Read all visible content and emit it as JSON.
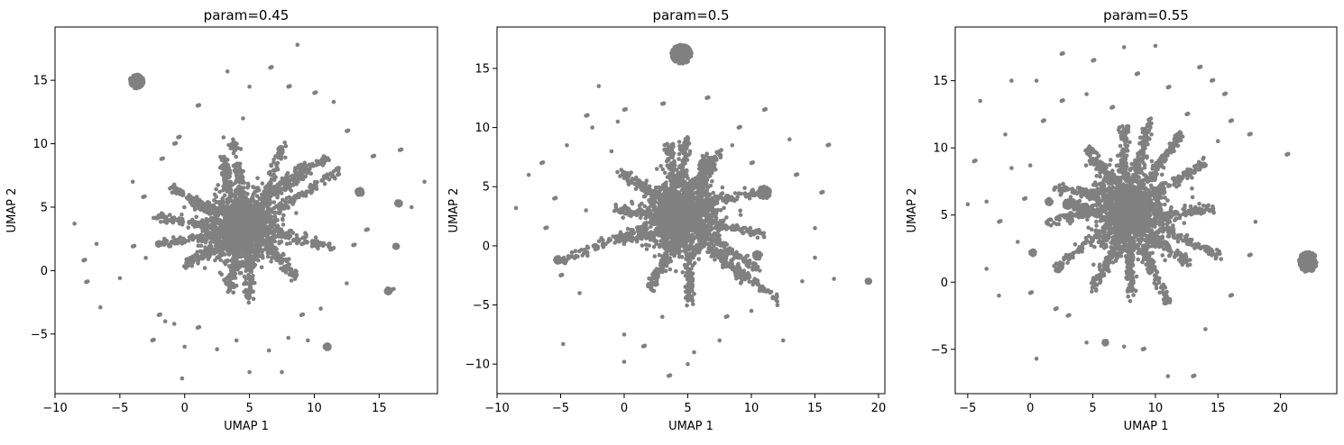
{
  "colors": {
    "points": "#808080",
    "axes": "#000000",
    "background": "#ffffff"
  },
  "chart_data": [
    {
      "type": "scatter",
      "title": "param=0.45",
      "xlabel": "UMAP 1",
      "ylabel": "UMAP 2",
      "xlim": [
        -10,
        19.5
      ],
      "ylim": [
        -9.7,
        19.2
      ],
      "xticks": [
        -10,
        -5,
        0,
        5,
        10,
        15
      ],
      "yticks": [
        -5,
        0,
        5,
        10,
        15
      ],
      "xtick_labels": [
        "−10",
        "−5",
        "0",
        "5",
        "10",
        "15"
      ],
      "ytick_labels": [
        "−5",
        "0",
        "5",
        "10",
        "15"
      ],
      "grid": false,
      "color": "#808080",
      "core": {
        "center": [
          4.5,
          3.5
        ],
        "spread": [
          1.3,
          1.3
        ]
      },
      "arms": [
        [
          [
            6.0,
            5.0
          ],
          [
            7.6,
            10.0
          ]
        ],
        [
          [
            6.5,
            6.0
          ],
          [
            9.5,
            8.5
          ]
        ],
        [
          [
            3.5,
            6.0
          ],
          [
            3.0,
            9.0
          ]
        ],
        [
          [
            7.0,
            6.0
          ],
          [
            11.0,
            9.0
          ]
        ],
        [
          [
            7.5,
            5.0
          ],
          [
            12.0,
            8.0
          ]
        ],
        [
          [
            2.5,
            4.5
          ],
          [
            -1.0,
            6.5
          ]
        ],
        [
          [
            3.0,
            3.0
          ],
          [
            -2.0,
            2.0
          ]
        ],
        [
          [
            3.0,
            2.0
          ],
          [
            0.0,
            0.5
          ]
        ],
        [
          [
            4.0,
            1.5
          ],
          [
            3.5,
            -1.5
          ]
        ],
        [
          [
            5.0,
            1.5
          ],
          [
            5.0,
            -2.5
          ]
        ],
        [
          [
            6.5,
            2.0
          ],
          [
            8.5,
            -0.5
          ]
        ],
        [
          [
            7.0,
            3.0
          ],
          [
            11.5,
            1.8
          ]
        ],
        [
          [
            4.5,
            5.5
          ],
          [
            3.8,
            10.2
          ]
        ],
        [
          [
            2.0,
            3.5
          ],
          [
            -2.0,
            4.2
          ]
        ]
      ],
      "clusters": [
        {
          "center": [
            -3.7,
            14.9
          ],
          "radius": 0.55
        },
        {
          "center": [
            13.5,
            6.2
          ],
          "radius": 0.25
        },
        {
          "center": [
            16.5,
            5.3
          ],
          "radius": 0.2
        },
        {
          "center": [
            16.3,
            1.9
          ],
          "radius": 0.15
        },
        {
          "center": [
            15.7,
            -1.6
          ],
          "radius": 0.2
        },
        {
          "center": [
            11.0,
            -6.0
          ],
          "radius": 0.2
        },
        {
          "center": [
            -2.0,
            2.1
          ],
          "radius": 0.15
        }
      ],
      "outliers": [
        [
          -8.5,
          3.7
        ],
        [
          -7.8,
          0.8
        ],
        [
          -7.6,
          -0.9
        ],
        [
          -6.5,
          -2.9
        ],
        [
          -6.8,
          2.1
        ],
        [
          -5.0,
          -0.6
        ],
        [
          -4.0,
          1.9
        ],
        [
          -3.0,
          1.0
        ],
        [
          -2.0,
          -3.5
        ],
        [
          -2.5,
          -5.5
        ],
        [
          -0.2,
          -8.5
        ],
        [
          -0.8,
          -4.2
        ],
        [
          0.0,
          -6.0
        ],
        [
          1.0,
          -4.5
        ],
        [
          -1.5,
          -4.0
        ],
        [
          2.5,
          -6.2
        ],
        [
          4.0,
          -5.5
        ],
        [
          5.0,
          -8.0
        ],
        [
          6.5,
          -6.3
        ],
        [
          7.5,
          -8.0
        ],
        [
          8.0,
          -5.3
        ],
        [
          9.0,
          -3.5
        ],
        [
          9.5,
          -5.5
        ],
        [
          10.5,
          -3.0
        ],
        [
          12.5,
          -1.0
        ],
        [
          13.0,
          2.0
        ],
        [
          14.0,
          3.2
        ],
        [
          16.0,
          -1.5
        ],
        [
          17.5,
          5.0
        ],
        [
          18.5,
          7.0
        ],
        [
          16.6,
          9.5
        ],
        [
          14.5,
          9.0
        ],
        [
          12.5,
          11.0
        ],
        [
          11.5,
          13.3
        ],
        [
          10.0,
          14.0
        ],
        [
          8.0,
          14.5
        ],
        [
          6.6,
          16.0
        ],
        [
          8.7,
          17.8
        ],
        [
          5.0,
          14.5
        ],
        [
          3.3,
          15.7
        ],
        [
          1.0,
          13.0
        ],
        [
          4.5,
          12.0
        ],
        [
          -0.5,
          10.5
        ],
        [
          -1.8,
          8.8
        ],
        [
          -4.0,
          7.0
        ],
        [
          -3.2,
          5.8
        ],
        [
          -0.8,
          10.0
        ],
        [
          3.0,
          10.5
        ]
      ]
    },
    {
      "type": "scatter",
      "title": "param=0.5",
      "xlabel": "UMAP 1",
      "ylabel": "UMAP 2",
      "xlim": [
        -10,
        20.5
      ],
      "ylim": [
        -12.5,
        18.5
      ],
      "xticks": [
        -10,
        -5,
        0,
        5,
        10,
        15,
        20
      ],
      "yticks": [
        -10,
        -5,
        0,
        5,
        10,
        15
      ],
      "xtick_labels": [
        "−10",
        "−5",
        "0",
        "5",
        "10",
        "15",
        "20"
      ],
      "ytick_labels": [
        "−10",
        "−5",
        "0",
        "5",
        "10",
        "15"
      ],
      "grid": false,
      "color": "#808080",
      "core": {
        "center": [
          4.5,
          2.5
        ],
        "spread": [
          1.3,
          1.4
        ]
      },
      "arms": [
        [
          [
            5.8,
            4.5
          ],
          [
            7.5,
            8.0
          ]
        ],
        [
          [
            6.0,
            3.5
          ],
          [
            10.5,
            4.5
          ]
        ],
        [
          [
            6.5,
            2.0
          ],
          [
            11.0,
            1.0
          ]
        ],
        [
          [
            6.0,
            0.5
          ],
          [
            9.5,
            -3.0
          ]
        ],
        [
          [
            5.0,
            0.0
          ],
          [
            5.2,
            -5.0
          ]
        ],
        [
          [
            4.0,
            0.0
          ],
          [
            2.0,
            -3.5
          ]
        ],
        [
          [
            3.0,
            1.0
          ],
          [
            -0.5,
            0.5
          ]
        ],
        [
          [
            3.0,
            2.5
          ],
          [
            -0.5,
            3.0
          ]
        ],
        [
          [
            3.0,
            4.0
          ],
          [
            -0.5,
            6.3
          ]
        ],
        [
          [
            4.0,
            5.0
          ],
          [
            3.5,
            8.5
          ]
        ],
        [
          [
            4.5,
            5.0
          ],
          [
            4.8,
            9.0
          ]
        ],
        [
          [
            6.5,
            1.0
          ],
          [
            10.5,
            -2.0
          ]
        ],
        [
          [
            7.0,
            -0.2
          ],
          [
            12.2,
            -4.8
          ]
        ],
        [
          [
            2.5,
            2.0
          ],
          [
            -5.0,
            -1.2
          ]
        ],
        [
          [
            5.5,
            5.0
          ],
          [
            6.5,
            7.5
          ]
        ]
      ],
      "clusters": [
        {
          "center": [
            4.5,
            16.2
          ],
          "radius": 0.8
        },
        {
          "center": [
            11.0,
            4.5
          ],
          "radius": 0.5
        },
        {
          "center": [
            -5.2,
            -1.2
          ],
          "radius": 0.25
        },
        {
          "center": [
            19.2,
            -3.0
          ],
          "radius": 0.15
        },
        {
          "center": [
            10.5,
            -0.8
          ],
          "radius": 0.3
        }
      ],
      "outliers": [
        [
          -8.5,
          3.2
        ],
        [
          -7.5,
          6.0
        ],
        [
          -6.5,
          7.0
        ],
        [
          -5.5,
          4.0
        ],
        [
          -6.2,
          1.5
        ],
        [
          -5.0,
          -2.5
        ],
        [
          -4.8,
          -8.3
        ],
        [
          -3.5,
          -4.0
        ],
        [
          -4.5,
          8.5
        ],
        [
          -3.0,
          11.0
        ],
        [
          -2.0,
          13.5
        ],
        [
          -2.5,
          10.0
        ],
        [
          -0.5,
          10.5
        ],
        [
          -1.0,
          8.0
        ],
        [
          -3.0,
          3.0
        ],
        [
          0.0,
          -7.5
        ],
        [
          1.5,
          -8.5
        ],
        [
          0.0,
          -9.8
        ],
        [
          3.5,
          -11.0
        ],
        [
          5.0,
          -10.0
        ],
        [
          5.5,
          -9.0
        ],
        [
          3.0,
          -6.0
        ],
        [
          7.5,
          -8.0
        ],
        [
          8.0,
          -6.0
        ],
        [
          10.0,
          -5.5
        ],
        [
          12.5,
          -8.0
        ],
        [
          14.0,
          -3.0
        ],
        [
          15.0,
          -1.0
        ],
        [
          16.5,
          -2.8
        ],
        [
          15.0,
          1.5
        ],
        [
          15.5,
          4.5
        ],
        [
          16.0,
          8.5
        ],
        [
          13.0,
          9.0
        ],
        [
          13.5,
          6.0
        ],
        [
          11.0,
          11.5
        ],
        [
          9.0,
          10.0
        ],
        [
          10.0,
          7.0
        ],
        [
          8.5,
          8.5
        ],
        [
          3.0,
          12.0
        ],
        [
          6.5,
          12.5
        ],
        [
          0.0,
          11.5
        ]
      ]
    },
    {
      "type": "scatter",
      "title": "param=0.55",
      "xlabel": "UMAP 1",
      "ylabel": "UMAP 2",
      "xlim": [
        -6,
        24.5
      ],
      "ylim": [
        -8.3,
        19.0
      ],
      "xticks": [
        -5,
        0,
        5,
        10,
        15,
        20
      ],
      "yticks": [
        -5,
        0,
        5,
        10,
        15
      ],
      "xtick_labels": [
        "−5",
        "0",
        "5",
        "10",
        "15",
        "20"
      ],
      "ytick_labels": [
        "−5",
        "0",
        "5",
        "10",
        "15"
      ],
      "grid": false,
      "color": "#808080",
      "core": {
        "center": [
          8.0,
          5.2
        ],
        "spread": [
          1.3,
          1.4
        ]
      },
      "arms": [
        [
          [
            6.5,
            7.5
          ],
          [
            4.5,
            10.0
          ]
        ],
        [
          [
            7.5,
            8.0
          ],
          [
            7.5,
            11.5
          ]
        ],
        [
          [
            8.5,
            8.0
          ],
          [
            9.5,
            12.0
          ]
        ],
        [
          [
            9.5,
            7.5
          ],
          [
            12.0,
            11.0
          ]
        ],
        [
          [
            10.0,
            6.5
          ],
          [
            14.0,
            9.0
          ]
        ],
        [
          [
            10.0,
            5.0
          ],
          [
            14.5,
            5.5
          ]
        ],
        [
          [
            9.5,
            3.5
          ],
          [
            12.5,
            1.5
          ]
        ],
        [
          [
            9.0,
            2.5
          ],
          [
            11.0,
            -1.5
          ]
        ],
        [
          [
            8.0,
            2.5
          ],
          [
            8.0,
            -1.0
          ]
        ],
        [
          [
            7.0,
            3.0
          ],
          [
            5.0,
            -0.5
          ]
        ],
        [
          [
            6.0,
            4.0
          ],
          [
            2.0,
            1.0
          ]
        ],
        [
          [
            6.0,
            5.5
          ],
          [
            1.5,
            4.5
          ]
        ],
        [
          [
            6.0,
            6.5
          ],
          [
            2.0,
            7.0
          ]
        ],
        [
          [
            10.5,
            4.0
          ],
          [
            15.0,
            2.0
          ]
        ],
        [
          [
            5.5,
            5.0
          ],
          [
            3.0,
            6.0
          ]
        ]
      ],
      "clusters": [
        {
          "center": [
            22.2,
            1.5
          ],
          "radius": 0.75
        },
        {
          "center": [
            3.0,
            5.8
          ],
          "radius": 0.3
        },
        {
          "center": [
            0.2,
            2.2
          ],
          "radius": 0.2
        },
        {
          "center": [
            1.5,
            6.0
          ],
          "radius": 0.2
        },
        {
          "center": [
            6.0,
            -4.5
          ],
          "radius": 0.15
        }
      ],
      "outliers": [
        [
          -5.0,
          5.8
        ],
        [
          -4.5,
          9.0
        ],
        [
          -3.5,
          6.0
        ],
        [
          -2.5,
          4.5
        ],
        [
          -2.0,
          11.0
        ],
        [
          -1.5,
          8.5
        ],
        [
          -1.0,
          3.0
        ],
        [
          -0.5,
          6.2
        ],
        [
          0.0,
          8.7
        ],
        [
          0.5,
          15.0
        ],
        [
          0.0,
          -0.8
        ],
        [
          0.5,
          -5.7
        ],
        [
          1.0,
          12.0
        ],
        [
          2.5,
          17.0
        ],
        [
          2.5,
          13.5
        ],
        [
          4.5,
          14.0
        ],
        [
          5.0,
          16.5
        ],
        [
          6.5,
          13.0
        ],
        [
          7.5,
          17.5
        ],
        [
          8.5,
          15.5
        ],
        [
          10.0,
          17.6
        ],
        [
          11.0,
          14.5
        ],
        [
          12.5,
          12.5
        ],
        [
          13.5,
          16.0
        ],
        [
          14.5,
          15.0
        ],
        [
          15.5,
          14.0
        ],
        [
          16.0,
          12.0
        ],
        [
          17.5,
          11.0
        ],
        [
          15.0,
          10.5
        ],
        [
          20.5,
          9.5
        ],
        [
          18.0,
          4.5
        ],
        [
          17.5,
          2.0
        ],
        [
          16.0,
          -1.0
        ],
        [
          14.0,
          -3.5
        ],
        [
          13.0,
          -7.0
        ],
        [
          11.0,
          -7.0
        ],
        [
          9.0,
          -5.0
        ],
        [
          7.5,
          -4.8
        ],
        [
          4.5,
          -4.5
        ],
        [
          3.0,
          -2.5
        ],
        [
          2.0,
          -2.0
        ],
        [
          -2.5,
          -1.0
        ],
        [
          -3.5,
          1.0
        ],
        [
          -4.0,
          13.5
        ],
        [
          -1.5,
          15.0
        ]
      ]
    }
  ]
}
